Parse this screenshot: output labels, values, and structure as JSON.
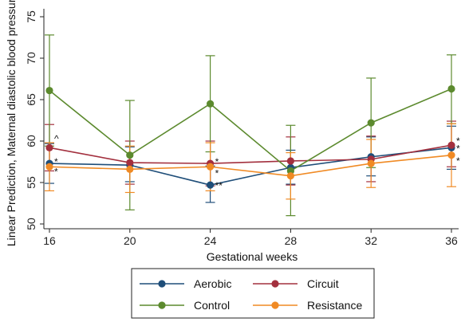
{
  "chart_data": {
    "type": "line",
    "title": "",
    "xlabel": "Gestational weeks",
    "ylabel": "Linear Prediction, Maternal diastolic blood pressure",
    "x": [
      16,
      20,
      24,
      28,
      32,
      36
    ],
    "xlim": [
      16,
      36
    ],
    "ylim": [
      50,
      75
    ],
    "xticks": [
      "16",
      "20",
      "24",
      "28",
      "32",
      "36"
    ],
    "yticks": [
      "50",
      "55",
      "60",
      "65",
      "70",
      "75"
    ],
    "grid": false,
    "legend_position": "bottom",
    "series": [
      {
        "name": "Aerobic",
        "color": "#1f4e79",
        "values": [
          57.3,
          57.1,
          54.7,
          56.8,
          58.1,
          59.2
        ],
        "ci_low": [
          54.9,
          55.1,
          52.6,
          54.8,
          55.8,
          56.6
        ],
        "ci_high": [
          59.7,
          59.3,
          57.0,
          58.9,
          60.5,
          61.8
        ]
      },
      {
        "name": "Circuit",
        "color": "#a3303e",
        "values": [
          59.2,
          57.4,
          57.3,
          57.6,
          57.8,
          59.5
        ],
        "ci_low": [
          56.4,
          54.8,
          54.6,
          54.7,
          55.1,
          56.9
        ],
        "ci_high": [
          62.0,
          60.0,
          60.0,
          60.5,
          60.6,
          62.4
        ]
      },
      {
        "name": "Control",
        "color": "#5c8a2e",
        "values": [
          66.1,
          58.3,
          64.5,
          56.4,
          62.2,
          66.3
        ],
        "ci_low": [
          59.4,
          51.7,
          58.7,
          51.0,
          56.8,
          62.1
        ],
        "ci_high": [
          72.8,
          64.9,
          70.3,
          61.9,
          67.6,
          70.4
        ]
      },
      {
        "name": "Resistance",
        "color": "#f08a24",
        "values": [
          56.9,
          56.6,
          56.9,
          55.8,
          57.3,
          58.3
        ],
        "ci_low": [
          54.0,
          53.8,
          54.0,
          53.0,
          54.4,
          54.5
        ],
        "ci_high": [
          59.8,
          59.4,
          59.8,
          58.6,
          60.2,
          62.1
        ]
      }
    ],
    "annotations": [
      {
        "x": 16,
        "y": 60.3,
        "text": "^"
      },
      {
        "x": 16,
        "y": 57.5,
        "text": "*"
      },
      {
        "x": 16,
        "y": 56.3,
        "text": "*"
      },
      {
        "x": 24,
        "y": 57.5,
        "text": "*"
      },
      {
        "x": 24,
        "y": 56.1,
        "text": "*"
      },
      {
        "x": 24,
        "y": 54.6,
        "text": "**"
      },
      {
        "x": 36,
        "y": 60.0,
        "text": "*"
      },
      {
        "x": 36,
        "y": 59.1,
        "text": "*"
      },
      {
        "x": 36,
        "y": 57.6,
        "text": "*"
      }
    ]
  }
}
